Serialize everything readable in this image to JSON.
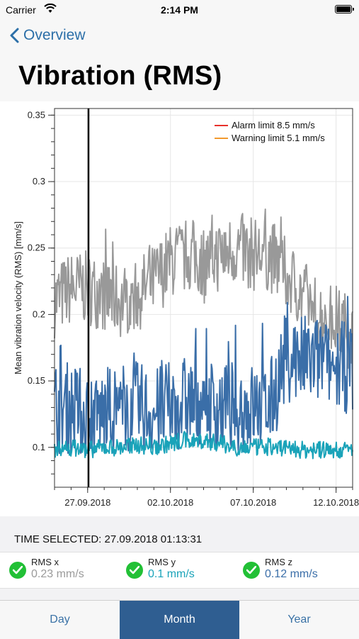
{
  "status_bar": {
    "carrier": "Carrier",
    "time": "2:14 PM"
  },
  "nav": {
    "back_label": "Overview",
    "title": "Vibration (RMS)"
  },
  "chart_data": {
    "type": "line",
    "ylabel": "Mean vibration velocity (RMS) [mm/s]",
    "xlabel": "",
    "ylim": [
      0.07,
      0.355
    ],
    "xlim": [
      "2018-09-25",
      "2018-10-13"
    ],
    "y_ticks": [
      "0.1",
      "0.15",
      "0.2",
      "0.25",
      "0.3",
      "0.35"
    ],
    "x_ticks": [
      "27.09.2018",
      "02.10.2018",
      "07.10.2018",
      "12.10.2018"
    ],
    "grid": true,
    "legend_position": "top-right",
    "legend": [
      {
        "name": "Alarm limit  8.5 mm/s",
        "color": "#e8312b"
      },
      {
        "name": "Warning limit 5.1 mm/s",
        "color": "#f29a2e"
      }
    ],
    "selected_marker": "2018-09-27T01:13:31",
    "series": [
      {
        "color": "#999999",
        "x": [
          "2018-09-25",
          "2018-09-26",
          "2018-09-27",
          "2018-09-28",
          "2018-09-29",
          "2018-09-30",
          "2018-10-01",
          "2018-10-02",
          "2018-10-03",
          "2018-10-04",
          "2018-10-05",
          "2018-10-06",
          "2018-10-07",
          "2018-10-08",
          "2018-10-09",
          "2018-10-10",
          "2018-10-11",
          "2018-10-12",
          "2018-10-13"
        ],
        "values": [
          0.21,
          0.22,
          0.22,
          0.215,
          0.21,
          0.215,
          0.225,
          0.24,
          0.245,
          0.24,
          0.245,
          0.25,
          0.245,
          0.245,
          0.23,
          0.215,
          0.2,
          0.195,
          0.185
        ]
      },
      {
        "color": "#3a6ea8",
        "x": [
          "2018-09-25",
          "2018-09-26",
          "2018-09-27",
          "2018-09-28",
          "2018-09-29",
          "2018-09-30",
          "2018-10-01",
          "2018-10-02",
          "2018-10-03",
          "2018-10-04",
          "2018-10-05",
          "2018-10-06",
          "2018-10-07",
          "2018-10-08",
          "2018-10-09",
          "2018-10-10",
          "2018-10-11",
          "2018-10-12",
          "2018-10-13"
        ],
        "values": [
          0.13,
          0.13,
          0.125,
          0.125,
          0.13,
          0.13,
          0.125,
          0.13,
          0.135,
          0.135,
          0.13,
          0.13,
          0.13,
          0.13,
          0.17,
          0.165,
          0.165,
          0.16,
          0.16
        ]
      },
      {
        "color": "#1aa3b9",
        "x": [
          "2018-09-25",
          "2018-09-26",
          "2018-09-27",
          "2018-09-28",
          "2018-09-29",
          "2018-09-30",
          "2018-10-01",
          "2018-10-02",
          "2018-10-03",
          "2018-10-04",
          "2018-10-05",
          "2018-10-06",
          "2018-10-07",
          "2018-10-08",
          "2018-10-09",
          "2018-10-10",
          "2018-10-11",
          "2018-10-12",
          "2018-10-13"
        ],
        "values": [
          0.098,
          0.1,
          0.098,
          0.1,
          0.1,
          0.102,
          0.1,
          0.103,
          0.105,
          0.105,
          0.103,
          0.1,
          0.1,
          0.1,
          0.1,
          0.098,
          0.098,
          0.098,
          0.098
        ]
      }
    ]
  },
  "selection": {
    "time_selected": "TIME SELECTED: 27.09.2018 01:13:31"
  },
  "rms": [
    {
      "label": "RMS x",
      "value": "0.23 mm/s",
      "color": "#9a9a9a"
    },
    {
      "label": "RMS y",
      "value": "0.1 mm/s",
      "color": "#1aa3b9"
    },
    {
      "label": "RMS z",
      "value": "0.12 mm/s",
      "color": "#3a6ea8"
    }
  ],
  "tabs": [
    {
      "label": "Day",
      "active": false
    },
    {
      "label": "Month",
      "active": true
    },
    {
      "label": "Year",
      "active": false
    }
  ]
}
